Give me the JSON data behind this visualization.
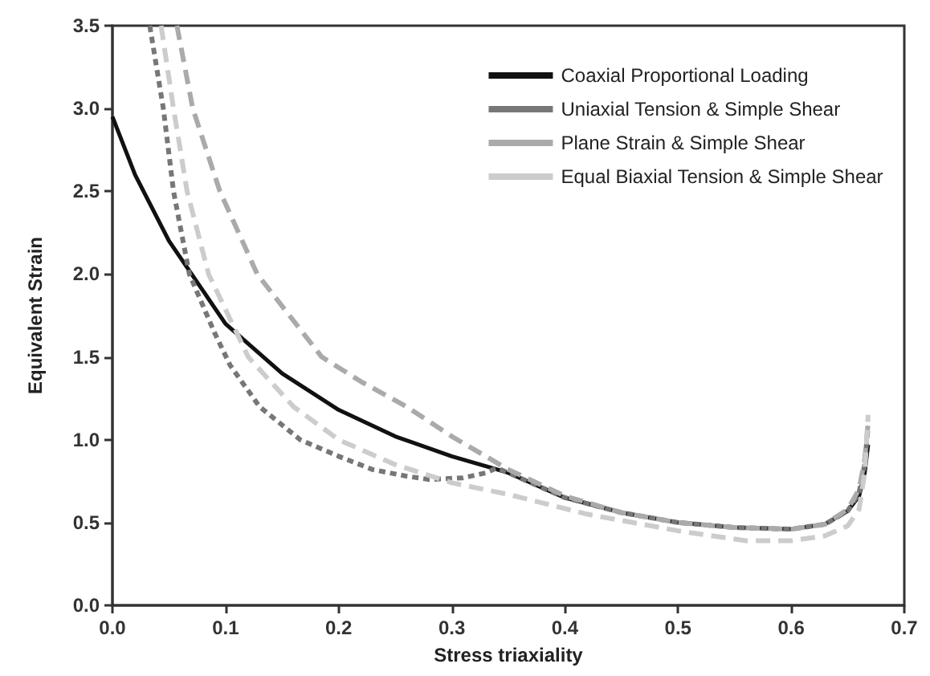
{
  "chart_data": {
    "type": "line",
    "xlabel": "Stress triaxiality",
    "ylabel": "Equivalent Strain",
    "xlim": [
      0,
      0.7
    ],
    "ylim": [
      0,
      3.5
    ],
    "xticks": [
      {
        "value": 0,
        "label": "0.0"
      },
      {
        "value": 0.1,
        "label": "0.1"
      },
      {
        "value": 0.2,
        "label": "0.2"
      },
      {
        "value": 0.3,
        "label": "0.3"
      },
      {
        "value": 0.4,
        "label": "0.4"
      },
      {
        "value": 0.5,
        "label": "0.5"
      },
      {
        "value": 0.6,
        "label": "0.6"
      },
      {
        "value": 0.7,
        "label": "0.7"
      }
    ],
    "yticks": [
      {
        "value": 0,
        "label": "0.0"
      },
      {
        "value": 0.5,
        "label": "0.5"
      },
      {
        "value": 1,
        "label": "1.0"
      },
      {
        "value": 1.5,
        "label": "1.5"
      },
      {
        "value": 2,
        "label": "2.0"
      },
      {
        "value": 2.5,
        "label": "2.5"
      },
      {
        "value": 3,
        "label": "3.0"
      },
      {
        "value": 3.5,
        "label": "3.5"
      }
    ],
    "grid": false,
    "legend": "top right",
    "marker": "none",
    "series": [
      {
        "name": "Coaxial Proportional Loading",
        "color": "#111111",
        "line_style": "solid",
        "x": [
          0,
          0.02,
          0.05,
          0.1,
          0.15,
          0.2,
          0.25,
          0.3,
          0.33,
          0.35,
          0.4,
          0.45,
          0.5,
          0.55,
          0.6,
          0.63,
          0.65,
          0.66,
          0.665,
          0.668
        ],
        "values": [
          2.95,
          2.6,
          2.2,
          1.7,
          1.4,
          1.18,
          1.02,
          0.9,
          0.84,
          0.8,
          0.65,
          0.56,
          0.5,
          0.47,
          0.46,
          0.49,
          0.57,
          0.66,
          0.8,
          0.97
        ]
      },
      {
        "name": "Uniaxial Tension & Simple Shear",
        "color": "#777777",
        "line_style": "dotted",
        "x": [
          0.033,
          0.045,
          0.054,
          0.068,
          0.09,
          0.104,
          0.13,
          0.166,
          0.2,
          0.23,
          0.26,
          0.28,
          0.31,
          0.33,
          0.34,
          0.4,
          0.45,
          0.5,
          0.55,
          0.6,
          0.63,
          0.65,
          0.66,
          0.665,
          0.668
        ],
        "values": [
          3.5,
          3,
          2.5,
          2,
          1.65,
          1.45,
          1.2,
          1,
          0.9,
          0.82,
          0.78,
          0.76,
          0.77,
          0.8,
          0.83,
          0.65,
          0.56,
          0.5,
          0.47,
          0.46,
          0.49,
          0.57,
          0.68,
          0.85,
          1.08
        ]
      },
      {
        "name": "Plane Strain & Simple Shear",
        "color": "#aaaaaa",
        "line_style": "dashed",
        "x": [
          0.057,
          0.071,
          0.095,
          0.128,
          0.185,
          0.22,
          0.26,
          0.3,
          0.33,
          0.35,
          0.4,
          0.45,
          0.5,
          0.55,
          0.6,
          0.63,
          0.65,
          0.66,
          0.665,
          0.668
        ],
        "values": [
          3.5,
          3,
          2.5,
          2,
          1.5,
          1.35,
          1.2,
          1.02,
          0.9,
          0.82,
          0.66,
          0.56,
          0.5,
          0.47,
          0.46,
          0.49,
          0.58,
          0.7,
          0.88,
          1.1
        ]
      },
      {
        "name": "Equal Biaxial Tension & Simple Shear",
        "color": "#cccccc",
        "line_style": "dashed",
        "x": [
          0.043,
          0.054,
          0.066,
          0.085,
          0.12,
          0.16,
          0.2,
          0.25,
          0.3,
          0.35,
          0.42,
          0.5,
          0.56,
          0.6,
          0.63,
          0.65,
          0.66,
          0.665,
          0.668
        ],
        "values": [
          3.5,
          3,
          2.5,
          2,
          1.5,
          1.2,
          1,
          0.85,
          0.74,
          0.67,
          0.55,
          0.45,
          0.39,
          0.39,
          0.42,
          0.48,
          0.58,
          0.8,
          1.15
        ]
      }
    ]
  }
}
